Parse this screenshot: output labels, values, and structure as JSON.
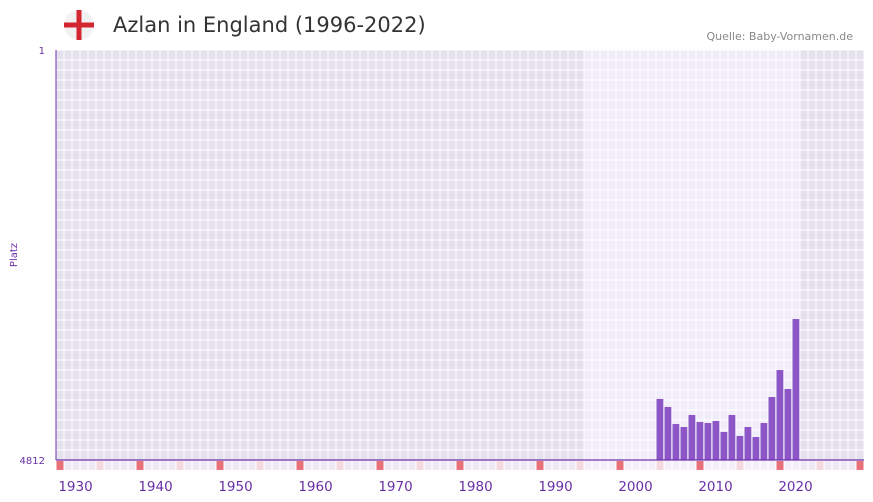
{
  "header": {
    "title": "Azlan in England (1996-2022)",
    "source": "Quelle: Baby-Vornamen.de",
    "flag_icon": "england-flag-icon"
  },
  "colors": {
    "bar": "#8c55c8",
    "axis": "#6a2fa8",
    "bg_out": "#e4e0ee",
    "bg_in": "#f0ecfa",
    "marker_red": "#e8707a",
    "marker_pink": "#f4d8de"
  },
  "chart_data": {
    "type": "bar",
    "title": "Azlan in England (1996-2022)",
    "xlabel": "",
    "ylabel": "Platz",
    "xlim": [
      1928,
      2029
    ],
    "ylim": [
      4812,
      1
    ],
    "y_ticks": [
      "1",
      "4812"
    ],
    "x_ticks": [
      1930,
      1940,
      1950,
      1960,
      1970,
      1980,
      1990,
      2000,
      2010,
      2020
    ],
    "highlight_range": [
      1994,
      2021
    ],
    "x": [
      2003,
      2004,
      2005,
      2006,
      2007,
      2008,
      2009,
      2010,
      2011,
      2012,
      2013,
      2014,
      2015,
      2016,
      2017,
      2018,
      2019,
      2020
    ],
    "values": [
      4096,
      4190,
      4390,
      4425,
      4284,
      4366,
      4378,
      4354,
      4483,
      4284,
      4530,
      4425,
      4542,
      4378,
      4073,
      3756,
      3979,
      3158
    ]
  }
}
